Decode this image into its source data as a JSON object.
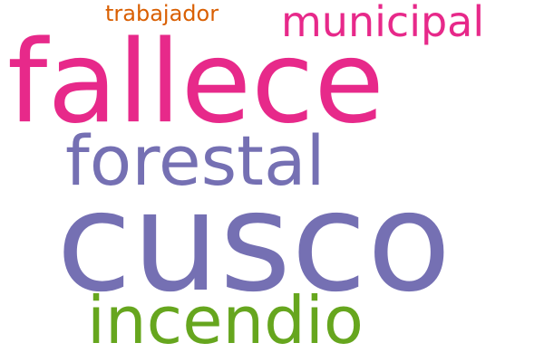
{
  "words": {
    "trabajador": {
      "text": "trabajador",
      "color": "#d95f02"
    },
    "municipal": {
      "text": "municipal",
      "color": "#e7298a"
    },
    "fallece": {
      "text": "fallece",
      "color": "#e7298a"
    },
    "forestal": {
      "text": "forestal",
      "color": "#7570b3"
    },
    "cusco": {
      "text": "cusco",
      "color": "#7570b3"
    },
    "incendio": {
      "text": "incendio",
      "color": "#66a61e"
    }
  }
}
